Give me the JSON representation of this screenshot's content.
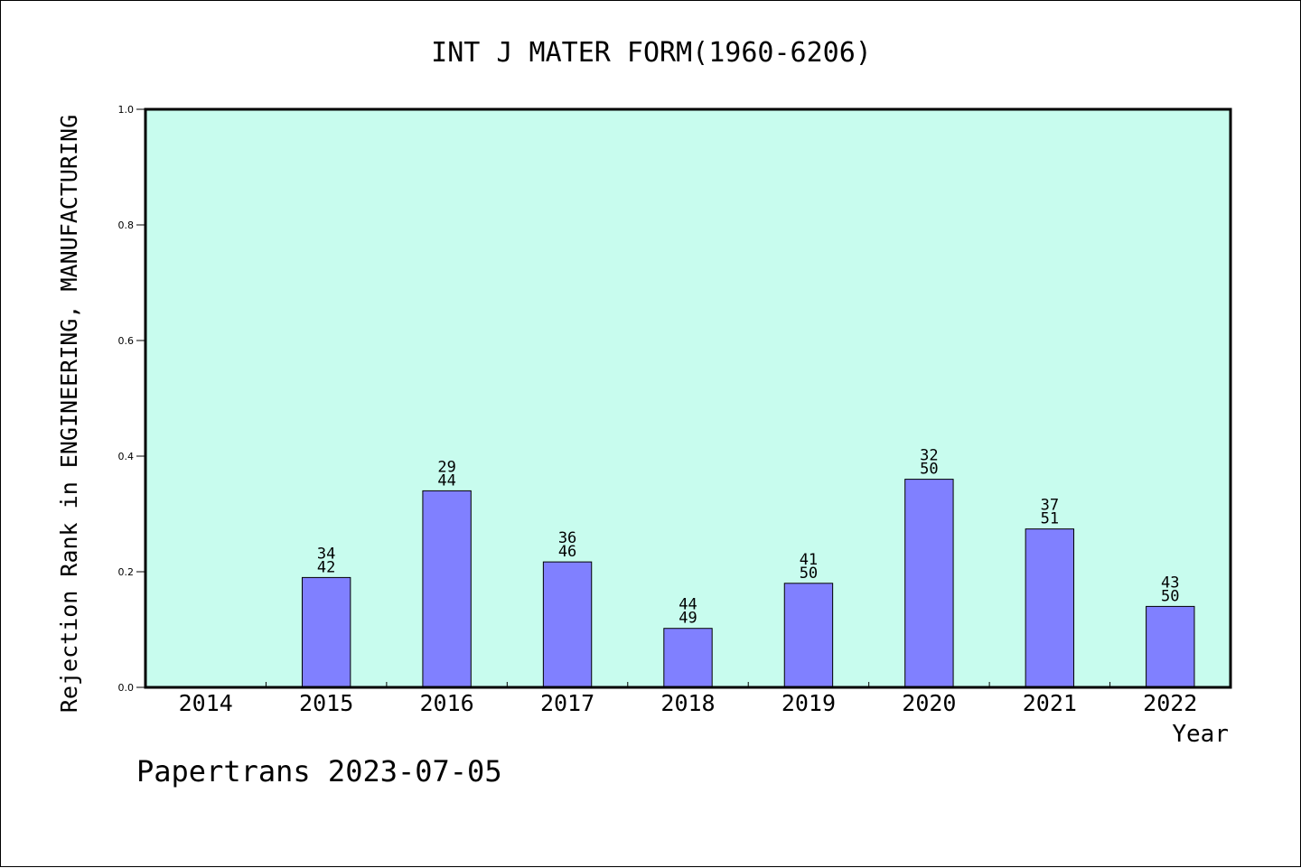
{
  "chart_data": {
    "type": "bar",
    "title": "INT J MATER FORM(1960-6206)",
    "xlabel": "Year",
    "ylabel": "Rejection Rank in ENGINEERING, MANUFACTURING",
    "ylim": [
      0,
      1.0
    ],
    "yticks": [
      "0.0",
      "0.2",
      "0.4",
      "0.6",
      "0.8",
      "1.0"
    ],
    "categories": [
      "2014",
      "2015",
      "2016",
      "2017",
      "2018",
      "2019",
      "2020",
      "2021",
      "2022"
    ],
    "values": [
      null,
      0.19,
      0.34,
      0.217,
      0.102,
      0.18,
      0.36,
      0.274,
      0.14
    ],
    "label_top": [
      "",
      "34",
      "29",
      "36",
      "44",
      "41",
      "32",
      "37",
      "43"
    ],
    "label_bottom": [
      "",
      "42",
      "44",
      "46",
      "49",
      "50",
      "50",
      "51",
      "50"
    ],
    "grid": false,
    "colors": {
      "plot_background": "#c8fcee",
      "bar_fill": "#8080ff",
      "bar_stroke": "#000000"
    }
  },
  "footer": {
    "watermark": "Papertrans 2023-07-05"
  }
}
